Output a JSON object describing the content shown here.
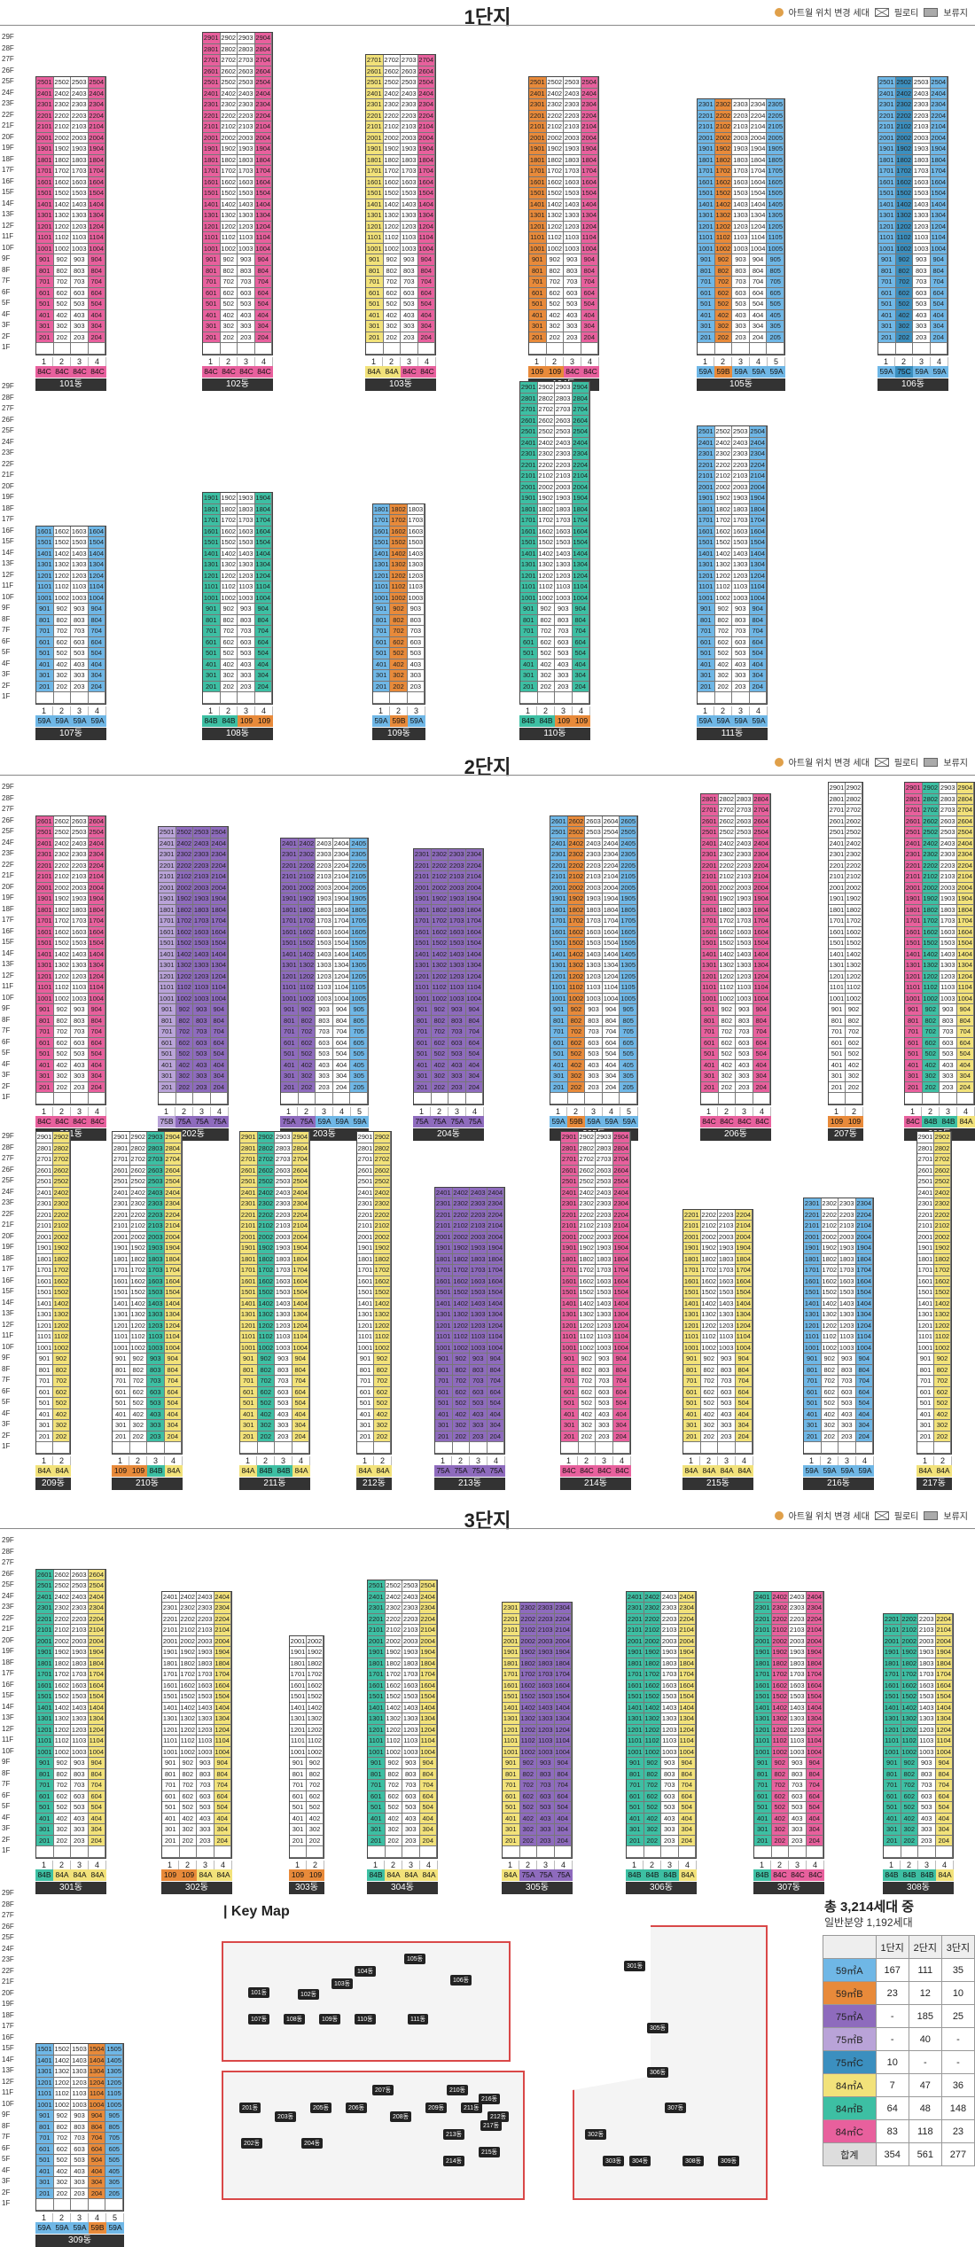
{
  "legend": {
    "relocate": "아트월 위치 변경 세대",
    "piloti": "필로티",
    "reserve": "보류지"
  },
  "floors": [
    "29F",
    "28F",
    "27F",
    "26F",
    "25F",
    "24F",
    "23F",
    "22F",
    "21F",
    "20F",
    "19F",
    "18F",
    "17F",
    "16F",
    "15F",
    "14F",
    "13F",
    "12F",
    "11F",
    "10F",
    "9F",
    "8F",
    "7F",
    "6F",
    "5F",
    "4F",
    "3F",
    "2F",
    "1F"
  ],
  "sections": [
    {
      "title": "1단지",
      "rows": [
        [
          {
            "name": "101동",
            "floors": 25,
            "lines": [
              "1",
              "2",
              "3",
              "4"
            ],
            "types": [
              "84C",
              "84C",
              "84C",
              "84C"
            ],
            "colors": [
              "84C",
              "w",
              "w",
              "84C"
            ]
          },
          {
            "name": "102동",
            "floors": 29,
            "lines": [
              "1",
              "2",
              "3",
              "4"
            ],
            "types": [
              "84C",
              "84C",
              "84C",
              "84C"
            ],
            "colors": [
              "84C",
              "w",
              "w",
              "84C"
            ]
          },
          {
            "name": "103동",
            "floors": 27,
            "lines": [
              "1",
              "2",
              "3",
              "4"
            ],
            "types": [
              "84A",
              "84A",
              "84C",
              "84C"
            ],
            "colors": [
              "84A",
              "w",
              "w",
              "84C"
            ]
          },
          {
            "name": "104동",
            "floors": 25,
            "lines": [
              "1",
              "2",
              "3",
              "4"
            ],
            "types": [
              "109",
              "109",
              "84C",
              "84C"
            ],
            "colors": [
              "59B",
              "w",
              "w",
              "84C"
            ]
          },
          {
            "name": "105동",
            "floors": 23,
            "lines": [
              "1",
              "2",
              "3",
              "4",
              "5"
            ],
            "types": [
              "59A",
              "59B",
              "59A",
              "59A",
              "59A"
            ],
            "colors": [
              "59A",
              "59B",
              "w",
              "w",
              "59A"
            ]
          },
          {
            "name": "106동",
            "floors": 25,
            "lines": [
              "1",
              "2",
              "3",
              "4"
            ],
            "types": [
              "59A",
              "75C",
              "59A",
              "59A"
            ],
            "colors": [
              "59A",
              "75C",
              "w",
              "59A"
            ]
          }
        ],
        [
          {
            "name": "107동",
            "floors": 16,
            "lines": [
              "1",
              "2",
              "3",
              "4"
            ],
            "types": [
              "59A",
              "59A",
              "59A",
              "59A"
            ],
            "colors": [
              "59A",
              "w",
              "w",
              "59A"
            ]
          },
          {
            "name": "108동",
            "floors": 19,
            "lines": [
              "1",
              "2",
              "3",
              "4"
            ],
            "types": [
              "84B",
              "84B",
              "109",
              "109"
            ],
            "colors": [
              "84B",
              "w",
              "w",
              "84B"
            ]
          },
          {
            "name": "109동",
            "floors": 18,
            "lines": [
              "1",
              "2",
              "3"
            ],
            "types": [
              "59A",
              "59B",
              "59A"
            ],
            "colors": [
              "59A",
              "59B",
              "w"
            ]
          },
          {
            "name": "110동",
            "floors": 29,
            "lines": [
              "1",
              "2",
              "3",
              "4"
            ],
            "types": [
              "84B",
              "84B",
              "109",
              "109"
            ],
            "colors": [
              "84B",
              "w",
              "w",
              "84B"
            ]
          },
          {
            "name": "111동",
            "floors": 25,
            "lines": [
              "1",
              "2",
              "3",
              "4"
            ],
            "types": [
              "59A",
              "59A",
              "59A",
              "59A"
            ],
            "colors": [
              "59A",
              "w",
              "w",
              "59A"
            ]
          }
        ]
      ]
    },
    {
      "title": "2단지",
      "rows": [
        [
          {
            "name": "201동",
            "floors": 26,
            "lines": [
              "1",
              "2",
              "3",
              "4"
            ],
            "types": [
              "84C",
              "84C",
              "84C",
              "84C"
            ],
            "colors": [
              "84C",
              "w",
              "w",
              "84C"
            ]
          },
          {
            "name": "202동",
            "floors": 25,
            "lines": [
              "1",
              "2",
              "3",
              "4"
            ],
            "types": [
              "75B",
              "75A",
              "75A",
              "75A"
            ],
            "colors": [
              "75B",
              "75A",
              "75A",
              "75A"
            ]
          },
          {
            "name": "203동",
            "floors": 24,
            "lines": [
              "1",
              "2",
              "3",
              "4",
              "5"
            ],
            "types": [
              "75A",
              "75A",
              "59A",
              "59A",
              "59A"
            ],
            "colors": [
              "75A",
              "75A",
              "w",
              "w",
              "59A"
            ]
          },
          {
            "name": "204동",
            "floors": 23,
            "lines": [
              "1",
              "2",
              "3",
              "4"
            ],
            "types": [
              "75A",
              "75A",
              "75A",
              "75A"
            ],
            "colors": [
              "75A",
              "75A",
              "75A",
              "75A"
            ]
          },
          {
            "name": "205동",
            "floors": 26,
            "lines": [
              "1",
              "2",
              "3",
              "4",
              "5"
            ],
            "types": [
              "59A",
              "59B",
              "59A",
              "59A",
              "59A"
            ],
            "colors": [
              "59A",
              "59B",
              "w",
              "w",
              "59A"
            ]
          },
          {
            "name": "206동",
            "floors": 28,
            "lines": [
              "1",
              "2",
              "3",
              "4"
            ],
            "types": [
              "84C",
              "84C",
              "84C",
              "84C"
            ],
            "colors": [
              "84C",
              "w",
              "w",
              "84C"
            ]
          },
          {
            "name": "207동",
            "floors": 29,
            "lines": [
              "1",
              "2"
            ],
            "types": [
              "109",
              "109"
            ],
            "colors": [
              "w",
              "w"
            ]
          },
          {
            "name": "208동",
            "floors": 29,
            "lines": [
              "1",
              "2",
              "3",
              "4"
            ],
            "types": [
              "84C",
              "84B",
              "84B",
              "84A"
            ],
            "colors": [
              "84C",
              "84B",
              "w",
              "84A"
            ]
          }
        ],
        [
          {
            "name": "209동",
            "floors": 29,
            "lines": [
              "1",
              "2"
            ],
            "types": [
              "84A",
              "84A"
            ],
            "colors": [
              "w",
              "84A"
            ]
          },
          {
            "name": "210동",
            "floors": 29,
            "lines": [
              "1",
              "2",
              "3",
              "4"
            ],
            "types": [
              "109",
              "109",
              "84B",
              "84A"
            ],
            "colors": [
              "w",
              "w",
              "84B",
              "84A"
            ]
          },
          {
            "name": "211동",
            "floors": 29,
            "lines": [
              "1",
              "2",
              "3",
              "4"
            ],
            "types": [
              "84A",
              "84B",
              "84B",
              "84A"
            ],
            "colors": [
              "84A",
              "84B",
              "w",
              "84A"
            ]
          },
          {
            "name": "212동",
            "floors": 29,
            "lines": [
              "1",
              "2"
            ],
            "types": [
              "84A",
              "84A"
            ],
            "colors": [
              "w",
              "84A"
            ]
          },
          {
            "name": "213동",
            "floors": 24,
            "lines": [
              "1",
              "2",
              "3",
              "4"
            ],
            "types": [
              "75A",
              "75A",
              "75A",
              "75A"
            ],
            "colors": [
              "75A",
              "75A",
              "75A",
              "75A"
            ]
          },
          {
            "name": "214동",
            "floors": 29,
            "lines": [
              "1",
              "2",
              "3",
              "4"
            ],
            "types": [
              "84C",
              "84C",
              "84C",
              "84C"
            ],
            "colors": [
              "84C",
              "w",
              "w",
              "84C"
            ]
          },
          {
            "name": "215동",
            "floors": 22,
            "lines": [
              "1",
              "2",
              "3",
              "4"
            ],
            "types": [
              "84A",
              "84A",
              "84A",
              "84A"
            ],
            "colors": [
              "84A",
              "w",
              "w",
              "84A"
            ]
          },
          {
            "name": "216동",
            "floors": 23,
            "lines": [
              "1",
              "2",
              "3",
              "4"
            ],
            "types": [
              "59A",
              "59A",
              "59A",
              "59A"
            ],
            "colors": [
              "59A",
              "w",
              "w",
              "59A"
            ]
          },
          {
            "name": "217동",
            "floors": 29,
            "lines": [
              "1",
              "2"
            ],
            "types": [
              "84A",
              "84A"
            ],
            "colors": [
              "w",
              "84A"
            ]
          }
        ]
      ]
    },
    {
      "title": "3단지",
      "rows": [
        [
          {
            "name": "301동",
            "floors": 26,
            "lines": [
              "1",
              "2",
              "3",
              "4"
            ],
            "types": [
              "84B",
              "84A",
              "84A",
              "84A"
            ],
            "colors": [
              "84B",
              "w",
              "w",
              "84A"
            ]
          },
          {
            "name": "302동",
            "floors": 24,
            "lines": [
              "1",
              "2",
              "3",
              "4"
            ],
            "types": [
              "109",
              "109",
              "84A",
              "84A"
            ],
            "colors": [
              "w",
              "w",
              "w",
              "84A"
            ]
          },
          {
            "name": "303동",
            "floors": 20,
            "lines": [
              "1",
              "2"
            ],
            "types": [
              "109",
              "109"
            ],
            "colors": [
              "w",
              "w"
            ]
          },
          {
            "name": "304동",
            "floors": 25,
            "lines": [
              "1",
              "2",
              "3",
              "4"
            ],
            "types": [
              "84B",
              "84A",
              "84A",
              "84A"
            ],
            "colors": [
              "84B",
              "w",
              "w",
              "84A"
            ]
          },
          {
            "name": "305동",
            "floors": 23,
            "lines": [
              "1",
              "2",
              "3",
              "4"
            ],
            "types": [
              "84A",
              "75A",
              "75A",
              "75A"
            ],
            "colors": [
              "84A",
              "75A",
              "75A",
              "75A"
            ]
          },
          {
            "name": "306동",
            "floors": 24,
            "lines": [
              "1",
              "2",
              "3",
              "4"
            ],
            "types": [
              "84B",
              "84B",
              "84B",
              "84A"
            ],
            "colors": [
              "84B",
              "84B",
              "w",
              "84A"
            ]
          },
          {
            "name": "307동",
            "floors": 24,
            "lines": [
              "1",
              "2",
              "3",
              "4"
            ],
            "types": [
              "84B",
              "84C",
              "84C",
              "84C"
            ],
            "colors": [
              "84B",
              "84C",
              "w",
              "84C"
            ]
          },
          {
            "name": "308동",
            "floors": 22,
            "lines": [
              "1",
              "2",
              "3",
              "4"
            ],
            "types": [
              "84B",
              "84B",
              "84B",
              "84A"
            ],
            "colors": [
              "84B",
              "84B",
              "w",
              "84A"
            ]
          }
        ],
        [
          {
            "name": "309동",
            "floors": 15,
            "lines": [
              "1",
              "2",
              "3",
              "4",
              "5"
            ],
            "types": [
              "59A",
              "59A",
              "59A",
              "59B",
              "59A"
            ],
            "colors": [
              "59A",
              "w",
              "w",
              "59B",
              "59A"
            ]
          }
        ]
      ]
    }
  ],
  "keymap": {
    "title": "Key Map",
    "labels": [
      "101동",
      "102동",
      "103동",
      "104동",
      "105동",
      "106동",
      "107동",
      "108동",
      "109동",
      "110동",
      "111동",
      "201동",
      "202동",
      "203동",
      "204동",
      "205동",
      "206동",
      "207동",
      "208동",
      "209동",
      "210동",
      "211동",
      "212동",
      "213동",
      "214동",
      "215동",
      "216동",
      "217동",
      "301동",
      "302동",
      "303동",
      "304동",
      "305동",
      "306동",
      "307동",
      "308동",
      "309동"
    ]
  },
  "summary": {
    "title": "총 3,214세대 중",
    "subtitle": "일반분양 1,192세대",
    "headers": [
      "",
      "1단지",
      "2단지",
      "3단지"
    ],
    "rows": [
      {
        "type": "59㎡A",
        "color": "#6fb7e6",
        "v": [
          "167",
          "111",
          "35"
        ]
      },
      {
        "type": "59㎡B",
        "color": "#e88a3a",
        "v": [
          "23",
          "12",
          "10"
        ]
      },
      {
        "type": "75㎡A",
        "color": "#8e6bbd",
        "v": [
          "-",
          "185",
          "25"
        ]
      },
      {
        "type": "75㎡B",
        "color": "#b9a3d8",
        "v": [
          "-",
          "40",
          "-"
        ]
      },
      {
        "type": "75㎡C",
        "color": "#3b8fbf",
        "v": [
          "10",
          "-",
          "-"
        ]
      },
      {
        "type": "84㎡A",
        "color": "#f2e27a",
        "v": [
          "7",
          "47",
          "36"
        ]
      },
      {
        "type": "84㎡B",
        "color": "#3dbfa3",
        "v": [
          "64",
          "48",
          "148"
        ]
      },
      {
        "type": "84㎡C",
        "color": "#e8609d",
        "v": [
          "83",
          "118",
          "23"
        ]
      },
      {
        "type": "합계",
        "color": "#dddddd",
        "v": [
          "354",
          "561",
          "277"
        ]
      }
    ]
  }
}
